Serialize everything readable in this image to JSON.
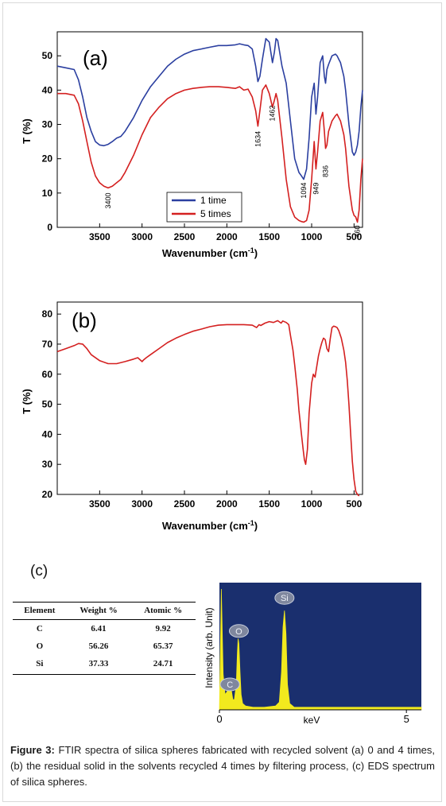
{
  "figure": {
    "caption_label": "Figure 3:",
    "caption_text": "FTIR spectra of silica spheres fabricated with recycled solvent (a) 0 and 4 times, (b) the residual solid in the solvents recycled 4 times by filtering process, (c) EDS spectrum of silica spheres."
  },
  "chart_data": [
    {
      "id": "a",
      "type": "line",
      "panel_label": "(a)",
      "xlabel": "Wavenumber (cm",
      "xlabel_sup": "-1",
      "xlabel_close": ")",
      "ylabel": "T (%)",
      "xlim": [
        4000,
        400
      ],
      "ylim": [
        0,
        57
      ],
      "x_ticks": [
        3500,
        3000,
        2500,
        2000,
        1500,
        1000,
        500
      ],
      "y_ticks": [
        0,
        10,
        20,
        30,
        40,
        50
      ],
      "legend_position": "bottom-center",
      "annotations": [
        {
          "text": "3400",
          "x": 3400,
          "y": 11
        },
        {
          "text": "1634",
          "x": 1634,
          "y": 29
        },
        {
          "text": "1462",
          "x": 1462,
          "y": 36.5
        },
        {
          "text": "1094",
          "x": 1094,
          "y": 14
        },
        {
          "text": "949",
          "x": 949,
          "y": 14
        },
        {
          "text": "836",
          "x": 836,
          "y": 19
        },
        {
          "text": "460",
          "x": 460,
          "y": 1.5
        }
      ],
      "series": [
        {
          "name": "1 time",
          "color": "#2b3fa0",
          "x": [
            4000,
            3900,
            3800,
            3750,
            3700,
            3650,
            3600,
            3550,
            3500,
            3450,
            3400,
            3350,
            3300,
            3250,
            3200,
            3100,
            3000,
            2900,
            2800,
            2700,
            2600,
            2500,
            2400,
            2300,
            2200,
            2100,
            2000,
            1900,
            1850,
            1800,
            1750,
            1700,
            1660,
            1634,
            1610,
            1580,
            1540,
            1500,
            1462,
            1440,
            1420,
            1400,
            1350,
            1300,
            1250,
            1200,
            1150,
            1120,
            1094,
            1060,
            1030,
            1000,
            970,
            949,
            930,
            900,
            870,
            850,
            836,
            820,
            800,
            760,
            720,
            700,
            680,
            660,
            620,
            600,
            560,
            520,
            500,
            480,
            460,
            440,
            420,
            400
          ],
          "y": [
            47,
            46.5,
            46,
            43,
            38,
            32,
            28,
            25,
            24,
            23.8,
            24.2,
            25,
            26,
            26.5,
            28,
            32,
            37,
            41,
            44,
            47,
            49,
            50.5,
            51.5,
            52,
            52.5,
            53,
            53,
            53.2,
            53.5,
            53.2,
            53,
            52,
            47,
            42.5,
            44,
            49,
            55,
            54,
            48,
            51,
            55,
            54.5,
            47,
            42,
            31,
            20,
            16,
            15,
            14,
            17,
            26,
            38,
            42,
            33,
            38,
            48,
            50,
            44,
            42,
            46,
            47.5,
            50,
            50.5,
            50,
            49,
            48,
            44,
            40,
            30,
            22,
            21,
            22,
            24,
            28,
            35,
            40
          ]
        },
        {
          "name": "5 times",
          "color": "#d42020",
          "x": [
            4000,
            3900,
            3800,
            3750,
            3700,
            3650,
            3600,
            3550,
            3500,
            3450,
            3400,
            3350,
            3300,
            3250,
            3200,
            3100,
            3000,
            2900,
            2800,
            2700,
            2600,
            2500,
            2400,
            2300,
            2200,
            2100,
            2000,
            1900,
            1850,
            1800,
            1750,
            1700,
            1660,
            1634,
            1610,
            1580,
            1540,
            1500,
            1462,
            1440,
            1420,
            1400,
            1350,
            1300,
            1250,
            1200,
            1150,
            1120,
            1094,
            1060,
            1030,
            1000,
            970,
            949,
            930,
            900,
            870,
            850,
            836,
            820,
            800,
            760,
            720,
            700,
            680,
            660,
            620,
            600,
            560,
            520,
            500,
            480,
            460,
            440,
            420,
            400
          ],
          "y": [
            39,
            39,
            38.5,
            36,
            31,
            25,
            19,
            15,
            13,
            12,
            11.5,
            12,
            13,
            14,
            16,
            21,
            27,
            32,
            35,
            37.5,
            39,
            40,
            40.5,
            40.8,
            41,
            41,
            40.8,
            40.5,
            41,
            40,
            40.3,
            38,
            34,
            29.5,
            34,
            40,
            41.5,
            39,
            35,
            37,
            39,
            37,
            26,
            14,
            6,
            3,
            2,
            1.7,
            1.5,
            2,
            5,
            14,
            25,
            17,
            22,
            31,
            33.5,
            28,
            23,
            24,
            28,
            31,
            32.5,
            33,
            32,
            31,
            27,
            23,
            12,
            5,
            3.5,
            3,
            1.5,
            5,
            14,
            20
          ]
        }
      ]
    },
    {
      "id": "b",
      "type": "line",
      "panel_label": "(b)",
      "xlabel": "Wavenumber (cm",
      "xlabel_sup": "-1",
      "xlabel_close": ")",
      "ylabel": "T (%)",
      "xlim": [
        4000,
        400
      ],
      "ylim": [
        20,
        84
      ],
      "x_ticks": [
        3500,
        3000,
        2500,
        2000,
        1500,
        1000,
        500
      ],
      "y_ticks": [
        20,
        30,
        40,
        50,
        60,
        70,
        80
      ],
      "series": [
        {
          "name": "",
          "color": "#d42020",
          "x": [
            4000,
            3900,
            3800,
            3750,
            3700,
            3650,
            3600,
            3500,
            3400,
            3300,
            3200,
            3100,
            3050,
            3000,
            2980,
            2950,
            2900,
            2800,
            2700,
            2600,
            2500,
            2400,
            2300,
            2200,
            2100,
            2000,
            1900,
            1800,
            1700,
            1650,
            1620,
            1600,
            1550,
            1500,
            1450,
            1400,
            1360,
            1340,
            1300,
            1270,
            1250,
            1220,
            1200,
            1170,
            1150,
            1120,
            1100,
            1085,
            1070,
            1050,
            1030,
            1000,
            980,
            960,
            940,
            920,
            900,
            880,
            860,
            840,
            820,
            800,
            780,
            760,
            740,
            720,
            700,
            680,
            650,
            620,
            600,
            580,
            560,
            540,
            520,
            500,
            480,
            460,
            440
          ],
          "y": [
            67.5,
            68.5,
            69.5,
            70.2,
            70,
            68.5,
            66.5,
            64.5,
            63.5,
            63.5,
            64.2,
            65,
            65.5,
            64.2,
            64.8,
            65.5,
            66.5,
            68.5,
            70.5,
            72,
            73.2,
            74.3,
            75,
            75.8,
            76.3,
            76.5,
            76.5,
            76.5,
            76.3,
            75.5,
            76.5,
            76.2,
            77,
            77.5,
            77.2,
            77.8,
            77,
            77.7,
            77.2,
            76.5,
            73,
            68,
            63,
            55,
            48,
            40,
            35,
            31.5,
            30,
            35,
            47,
            57,
            60,
            59,
            62.5,
            66,
            68.5,
            70.5,
            72,
            71.5,
            68.5,
            67.5,
            72,
            75.5,
            76,
            75.8,
            75.5,
            74.5,
            72,
            68,
            64,
            58,
            50,
            40,
            31,
            25,
            21,
            20,
            19.5
          ]
        }
      ]
    },
    {
      "id": "c",
      "type": "area",
      "panel_label": "(c)",
      "xlabel": "keV",
      "ylabel": "Intensity (arb. Unit)",
      "xlim": [
        0,
        5.4
      ],
      "ylim": [
        0,
        1
      ],
      "x_ticks": [
        0,
        5
      ],
      "background": "#1a2f6e",
      "fill_color": "#f2ea1e",
      "peak_labels": [
        {
          "text": "C",
          "x": 0.28,
          "y": 0.2
        },
        {
          "text": "O",
          "x": 0.52,
          "y": 0.62
        },
        {
          "text": "Si",
          "x": 1.74,
          "y": 0.88
        }
      ],
      "x": [
        0.0,
        0.05,
        0.1,
        0.15,
        0.2,
        0.24,
        0.28,
        0.32,
        0.36,
        0.4,
        0.45,
        0.48,
        0.5,
        0.52,
        0.55,
        0.58,
        0.62,
        0.7,
        0.9,
        1.2,
        1.5,
        1.6,
        1.66,
        1.7,
        1.74,
        1.78,
        1.82,
        1.88,
        2.0,
        2.5,
        3.0,
        3.5,
        4.0,
        4.5,
        5.0,
        5.4
      ],
      "y": [
        0.0,
        0.95,
        0.28,
        0.12,
        0.14,
        0.18,
        0.2,
        0.15,
        0.08,
        0.08,
        0.2,
        0.45,
        0.56,
        0.52,
        0.3,
        0.12,
        0.05,
        0.03,
        0.02,
        0.02,
        0.03,
        0.06,
        0.3,
        0.65,
        0.78,
        0.6,
        0.2,
        0.05,
        0.02,
        0.02,
        0.02,
        0.02,
        0.02,
        0.02,
        0.02,
        0.02
      ]
    }
  ],
  "table": {
    "headers": [
      "Element",
      "Weight %",
      "Atomic %"
    ],
    "rows": [
      [
        "C",
        "6.41",
        "9.92"
      ],
      [
        "O",
        "56.26",
        "65.37"
      ],
      [
        "Si",
        "37.33",
        "24.71"
      ]
    ]
  }
}
